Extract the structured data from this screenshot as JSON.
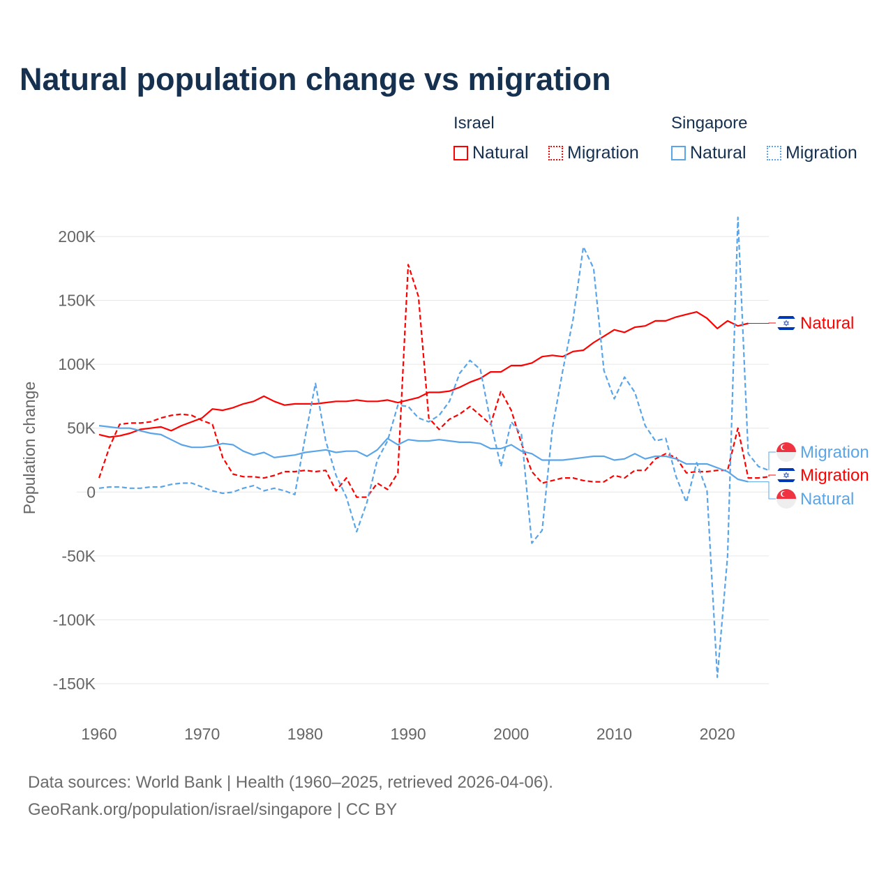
{
  "title": "Natural population change vs migration",
  "legend": {
    "groups": [
      {
        "name": "Israel",
        "items": [
          {
            "label": "Natural",
            "style": "solid"
          },
          {
            "label": "Migration",
            "style": "dotted"
          }
        ],
        "color": "#ff0000"
      },
      {
        "name": "Singapore",
        "items": [
          {
            "label": "Natural",
            "style": "solid"
          },
          {
            "label": "Migration",
            "style": "dotted"
          }
        ],
        "color": "#5aa5e8"
      }
    ]
  },
  "footer": {
    "line1": "Data sources: World Bank | Health (1960–2025, retrieved 2026-04-06).",
    "line2": "GeoRank.org/population/israel/singapore | CC BY"
  },
  "chart_data": {
    "type": "line",
    "title": "Natural population change vs migration",
    "xlabel": "",
    "ylabel": "Population change",
    "xlim": [
      1960,
      2025
    ],
    "ylim": [
      -150000,
      200000
    ],
    "x_ticks": [
      1960,
      1970,
      1980,
      1990,
      2000,
      2010,
      2020
    ],
    "y_ticks": [
      {
        "v": 200000,
        "label": "200K"
      },
      {
        "v": 150000,
        "label": "150K"
      },
      {
        "v": 100000,
        "label": "100K"
      },
      {
        "v": 50000,
        "label": "50K"
      },
      {
        "v": 0,
        "label": "0"
      },
      {
        "v": -50000,
        "label": "-50K"
      },
      {
        "v": -100000,
        "label": "-100K"
      },
      {
        "v": -150000,
        "label": "-150K"
      }
    ],
    "grid": true,
    "legend_position": "top-right",
    "x_start": 1960,
    "units": "thousands",
    "series": [
      {
        "name": "Israel Natural",
        "end_label": "Natural",
        "flag": "israel",
        "color": "#ff0000",
        "dash": false,
        "values": [
          45,
          43,
          44,
          46,
          49,
          50,
          51,
          48,
          52,
          55,
          58,
          65,
          64,
          66,
          69,
          71,
          75,
          71,
          68,
          69,
          69,
          69,
          70,
          71,
          71,
          72,
          71,
          71,
          72,
          70,
          72,
          74,
          78,
          78,
          79,
          82,
          86,
          89,
          94,
          94,
          99,
          99,
          101,
          106,
          107,
          106,
          110,
          111,
          117,
          122,
          127,
          125,
          129,
          130,
          134,
          134,
          137,
          139,
          141,
          136,
          128,
          134,
          130,
          132
        ]
      },
      {
        "name": "Israel Migration",
        "end_label": "Migration",
        "flag": "israel",
        "color": "#ff0000",
        "dash": true,
        "values": [
          11,
          35,
          53,
          54,
          54,
          55,
          58,
          60,
          61,
          60,
          56,
          53,
          27,
          14,
          12,
          12,
          11,
          13,
          16,
          16,
          17,
          16,
          17,
          1,
          11,
          -4,
          -4,
          7,
          2,
          15,
          178,
          153,
          58,
          49,
          57,
          61,
          67,
          60,
          53,
          79,
          64,
          38,
          16,
          7,
          9,
          11,
          11,
          9,
          8,
          8,
          13,
          11,
          17,
          17,
          26,
          30,
          27,
          15,
          16,
          16,
          17,
          17,
          50,
          11,
          11,
          12
        ]
      },
      {
        "name": "Singapore Natural",
        "end_label": "Natural",
        "flag": "singapore",
        "color": "#5aa5e8",
        "dash": false,
        "values": [
          52,
          51,
          50,
          50,
          48,
          46,
          45,
          41,
          37,
          35,
          35,
          36,
          38,
          37,
          32,
          29,
          31,
          27,
          28,
          29,
          31,
          32,
          33,
          31,
          32,
          32,
          28,
          33,
          42,
          37,
          41,
          40,
          40,
          41,
          40,
          39,
          39,
          38,
          34,
          34,
          37,
          32,
          30,
          25,
          25,
          25,
          26,
          27,
          28,
          28,
          25,
          26,
          30,
          26,
          28,
          28,
          26,
          22,
          22,
          22,
          19,
          16,
          10,
          8
        ]
      },
      {
        "name": "Singapore Migration",
        "end_label": "Migration",
        "flag": "singapore",
        "color": "#5aa5e8",
        "dash": true,
        "values": [
          3,
          4,
          4,
          3,
          3,
          4,
          4,
          6,
          7,
          7,
          4,
          1,
          -1,
          0,
          3,
          5,
          1,
          3,
          1,
          -2,
          43,
          85,
          40,
          13,
          -4,
          -31,
          -8,
          25,
          40,
          68,
          67,
          58,
          55,
          60,
          71,
          93,
          103,
          96,
          55,
          20,
          55,
          45,
          -40,
          -30,
          50,
          95,
          135,
          192,
          175,
          95,
          73,
          90,
          78,
          52,
          40,
          42,
          12,
          -8,
          23,
          1,
          -145,
          -50,
          215,
          30,
          20,
          17
        ]
      }
    ]
  }
}
